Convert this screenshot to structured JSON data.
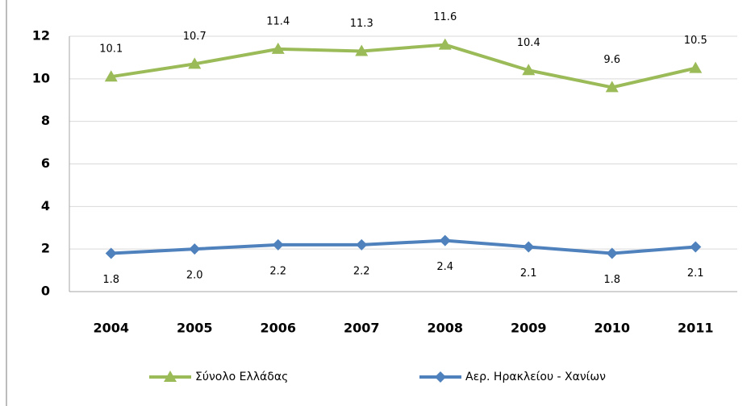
{
  "chart_data": {
    "type": "line",
    "categories": [
      "2004",
      "2005",
      "2006",
      "2007",
      "2008",
      "2009",
      "2010",
      "2011"
    ],
    "series": [
      {
        "name": "Σύνολο Ελλάδας",
        "color": "#9bbb59",
        "marker": "triangle",
        "values": [
          10.1,
          10.7,
          11.4,
          11.3,
          11.6,
          10.4,
          9.6,
          10.5
        ]
      },
      {
        "name": "Αερ. Ηρακλείου - Χανίων",
        "color": "#4f81bd",
        "marker": "diamond",
        "values": [
          1.8,
          2.0,
          2.2,
          2.2,
          2.4,
          2.1,
          1.8,
          2.1
        ],
        "value_labels": [
          "1.8",
          "2.0",
          "2.2",
          "2.2",
          "2.4",
          "2.1",
          "1.8",
          "2.1"
        ]
      }
    ],
    "ylim": [
      0,
      12
    ],
    "yticks": [
      0,
      2,
      4,
      6,
      8,
      10,
      12
    ],
    "grid": true,
    "legend": "bottom"
  }
}
